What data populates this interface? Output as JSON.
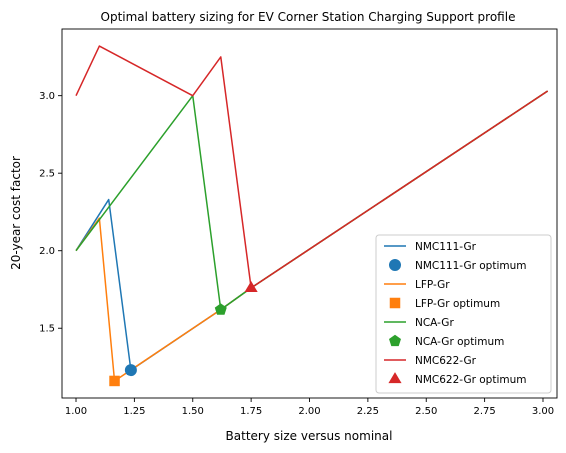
{
  "chart_data": {
    "type": "line",
    "title": "Optimal battery sizing for EV Corner Station Charging Support profile",
    "xlabel": "Battery size versus nominal",
    "ylabel": "20-year cost factor",
    "xlim": [
      0.94,
      3.06
    ],
    "ylim": [
      1.05,
      3.43
    ],
    "xticks": [
      1.0,
      1.25,
      1.5,
      1.75,
      2.0,
      2.25,
      2.5,
      2.75,
      3.0
    ],
    "xtick_labels": [
      "1.00",
      "1.25",
      "1.50",
      "1.75",
      "2.00",
      "2.25",
      "2.50",
      "2.75",
      "3.00"
    ],
    "yticks": [
      1.5,
      2.0,
      2.5,
      3.0
    ],
    "ytick_labels": [
      "1.5",
      "2.0",
      "2.5",
      "3.0"
    ],
    "grid": false,
    "legend_position": "lower-right",
    "series": [
      {
        "name": "NMC111-Gr",
        "color": "#1f77b4",
        "x": [
          1.0,
          1.14,
          1.235,
          1.62,
          1.75,
          3.02
        ],
        "y": [
          2.0,
          2.33,
          1.23,
          1.62,
          1.76,
          3.03
        ],
        "optimum_label": "NMC111-Gr optimum",
        "optimum": {
          "x": 1.235,
          "y": 1.23,
          "marker": "circle"
        }
      },
      {
        "name": "LFP-Gr",
        "color": "#ff7f0e",
        "x": [
          1.0,
          1.1,
          1.165,
          1.62,
          1.75,
          3.02
        ],
        "y": [
          2.0,
          2.21,
          1.16,
          1.62,
          1.76,
          3.03
        ],
        "optimum_label": "LFP-Gr optimum",
        "optimum": {
          "x": 1.165,
          "y": 1.16,
          "marker": "square"
        }
      },
      {
        "name": "NCA-Gr",
        "color": "#2ca02c",
        "x": [
          1.0,
          1.5,
          1.62,
          1.75,
          3.02
        ],
        "y": [
          2.0,
          3.0,
          1.62,
          1.76,
          3.03
        ],
        "optimum_label": "NCA-Gr optimum",
        "optimum": {
          "x": 1.62,
          "y": 1.62,
          "marker": "pentagon"
        }
      },
      {
        "name": "NMC622-Gr",
        "color": "#d62728",
        "x": [
          1.0,
          1.1,
          1.5,
          1.62,
          1.75,
          3.02
        ],
        "y": [
          3.0,
          3.32,
          3.0,
          3.25,
          1.76,
          3.03
        ],
        "optimum_label": "NMC622-Gr optimum",
        "optimum": {
          "x": 1.75,
          "y": 1.76,
          "marker": "triangle"
        }
      }
    ]
  }
}
